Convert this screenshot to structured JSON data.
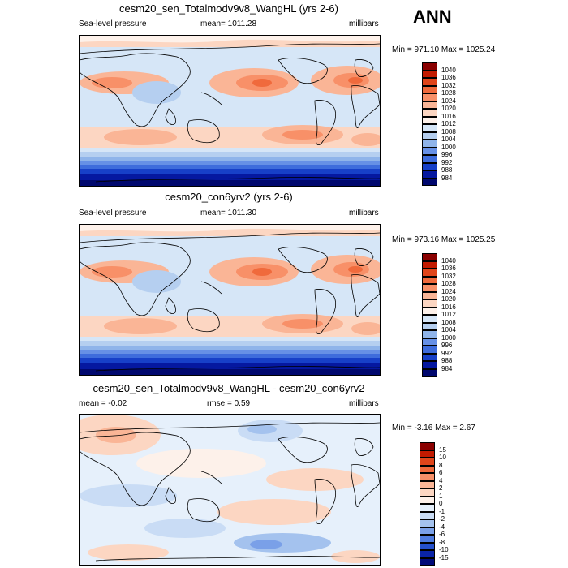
{
  "season": "ANN",
  "panels": [
    {
      "title": "cesm20_sen_Totalmodv9v8_WangHL (yrs 2-6)",
      "left_label": "Sea-level pressure",
      "center_label": "mean= 1011.28",
      "right_label": "millibars",
      "minmax": "Min = 971.10 Max = 1025.24",
      "levels": [
        "1040",
        "1036",
        "1032",
        "1028",
        "1024",
        "1020",
        "1016",
        "1012",
        "1008",
        "1004",
        "1000",
        "996",
        "992",
        "988",
        "984"
      ],
      "colors": [
        "#8a0000",
        "#c21a00",
        "#e0451a",
        "#f06a3c",
        "#f89068",
        "#fab596",
        "#fcd6c2",
        "#fdf1ea",
        "#d6e6f7",
        "#b5cff0",
        "#8fb4ea",
        "#6690e6",
        "#3e6cdc",
        "#1740c8",
        "#0518a0",
        "#00086e"
      ]
    },
    {
      "title": "cesm20_con6yrv2 (yrs 2-6)",
      "left_label": "Sea-level pressure",
      "center_label": "mean= 1011.30",
      "right_label": "millibars",
      "minmax": "Min = 973.16 Max = 1025.25",
      "levels": [
        "1040",
        "1036",
        "1032",
        "1028",
        "1024",
        "1020",
        "1016",
        "1012",
        "1008",
        "1004",
        "1000",
        "996",
        "992",
        "988",
        "984"
      ],
      "colors": [
        "#8a0000",
        "#c21a00",
        "#e0451a",
        "#f06a3c",
        "#f89068",
        "#fab596",
        "#fcd6c2",
        "#fdf1ea",
        "#d6e6f7",
        "#b5cff0",
        "#8fb4ea",
        "#6690e6",
        "#3e6cdc",
        "#1740c8",
        "#0518a0",
        "#00086e"
      ]
    },
    {
      "title": "cesm20_sen_Totalmodv9v8_WangHL - cesm20_con6yrv2",
      "left_label": "mean =  -0.02",
      "center_label": "rmse =   0.59",
      "right_label": "millibars",
      "minmax": "Min =  -3.16 Max =   2.67",
      "levels": [
        "15",
        "10",
        "8",
        "6",
        "4",
        "2",
        "1",
        "0",
        "-1",
        "-2",
        "-4",
        "-6",
        "-8",
        "-10",
        "-15"
      ],
      "colors": [
        "#8a0000",
        "#c21a00",
        "#e0451a",
        "#f06a3c",
        "#f89068",
        "#fab596",
        "#fcd6c2",
        "#fdf1ea",
        "#e6f0fb",
        "#c9dcf5",
        "#a4c2ee",
        "#7aa0e8",
        "#4f7ce0",
        "#2450cc",
        "#0a24a8",
        "#000a78"
      ]
    }
  ]
}
